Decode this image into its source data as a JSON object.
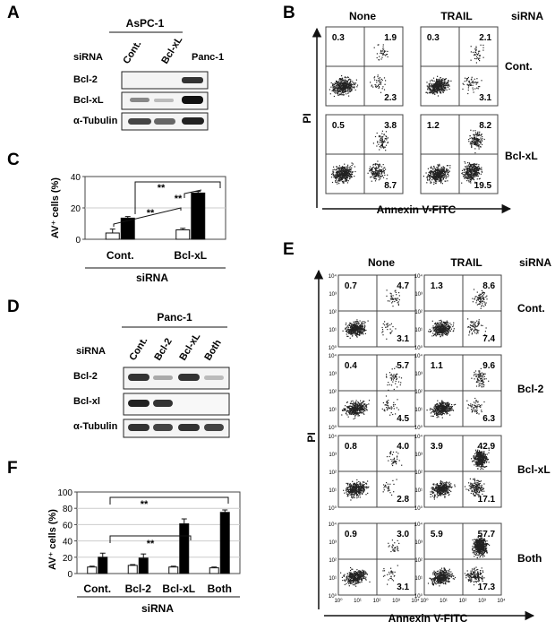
{
  "panels": {
    "A": {
      "letter": "A",
      "cell_line": "AsPC-1",
      "row_label": "siRNA",
      "lanes": [
        "Cont.",
        "Bcl-xL",
        "Panc-1"
      ],
      "blots": [
        "Bcl-2",
        "Bcl-xL",
        "α-Tubulin"
      ]
    },
    "B": {
      "letter": "B",
      "columns": [
        "None",
        "TRAIL"
      ],
      "corner_label": "siRNA",
      "rows": [
        "Cont.",
        "Bcl-xL"
      ],
      "y_axis": "PI",
      "x_axis": "Annexin V-FITC",
      "quadrants": [
        [
          {
            "ul": "0.3",
            "ur": "1.9",
            "lr": "2.3"
          },
          {
            "ul": "0.3",
            "ur": "2.1",
            "lr": "3.1"
          }
        ],
        [
          {
            "ul": "0.5",
            "ur": "3.8",
            "lr": "8.7"
          },
          {
            "ul": "1.2",
            "ur": "8.2",
            "lr": "19.5"
          }
        ]
      ]
    },
    "C": {
      "letter": "C",
      "y_label": "AV⁺ cells (%)",
      "x_title": "siRNA",
      "sig": [
        "**",
        "**",
        "**"
      ]
    },
    "D": {
      "letter": "D",
      "cell_line": "Panc-1",
      "row_label": "siRNA",
      "lanes": [
        "Cont.",
        "Bcl-2",
        "Bcl-xL",
        "Both"
      ],
      "blots": [
        "Bcl-2",
        "Bcl-xl",
        "α-Tubulin"
      ]
    },
    "E": {
      "letter": "E",
      "columns": [
        "None",
        "TRAIL"
      ],
      "corner_label": "siRNA",
      "rows": [
        "Cont.",
        "Bcl-2",
        "Bcl-xL",
        "Both"
      ],
      "y_axis": "PI",
      "x_axis": "Annexin V-FITC",
      "tick_labels": [
        "10⁰",
        "10¹",
        "10²",
        "10³",
        "10⁴"
      ],
      "quadrants": [
        [
          {
            "ul": "0.7",
            "ur": "4.7",
            "lr": "3.1"
          },
          {
            "ul": "1.3",
            "ur": "8.6",
            "lr": "7.4"
          }
        ],
        [
          {
            "ul": "0.4",
            "ur": "5.7",
            "lr": "4.5"
          },
          {
            "ul": "1.1",
            "ur": "9.6",
            "lr": "6.3"
          }
        ],
        [
          {
            "ul": "0.8",
            "ur": "4.0",
            "lr": "2.8"
          },
          {
            "ul": "3.9",
            "ur": "42.9",
            "lr": "17.1"
          }
        ],
        [
          {
            "ul": "0.9",
            "ur": "3.0",
            "lr": "3.1"
          },
          {
            "ul": "5.9",
            "ur": "57.7",
            "lr": "17.3"
          }
        ]
      ]
    },
    "F": {
      "letter": "F",
      "y_label": "AV⁺ cells (%)",
      "x_title": "siRNA",
      "sig": [
        "**",
        "**"
      ]
    }
  },
  "chart_data": [
    {
      "id": "C",
      "type": "bar",
      "categories": [
        "Cont.",
        "Bcl-xL"
      ],
      "series": [
        {
          "values": [
            4,
            6
          ],
          "errors": [
            2.5,
            1
          ],
          "color": "#ffffff"
        },
        {
          "values": [
            13.5,
            29.5
          ],
          "errors": [
            1,
            1
          ],
          "color": "#000000"
        }
      ],
      "title": "",
      "ylabel": "AV⁺ cells (%)",
      "xlabel": "siRNA",
      "ylim": [
        0,
        40
      ],
      "yticks": [
        0,
        20,
        40
      ],
      "grid": true
    },
    {
      "id": "F",
      "type": "bar",
      "categories": [
        "Cont.",
        "Bcl-2",
        "Bcl-xL",
        "Both"
      ],
      "series": [
        {
          "values": [
            8,
            10,
            8,
            7
          ],
          "errors": [
            1,
            1,
            1,
            1
          ],
          "color": "#ffffff"
        },
        {
          "values": [
            20,
            19,
            61,
            75
          ],
          "errors": [
            5,
            5,
            6,
            3
          ],
          "color": "#000000"
        }
      ],
      "title": "",
      "ylabel": "AV⁺ cells (%)",
      "xlabel": "siRNA",
      "ylim": [
        0,
        100
      ],
      "yticks": [
        0,
        20,
        40,
        60,
        80,
        100
      ],
      "grid": true
    }
  ]
}
